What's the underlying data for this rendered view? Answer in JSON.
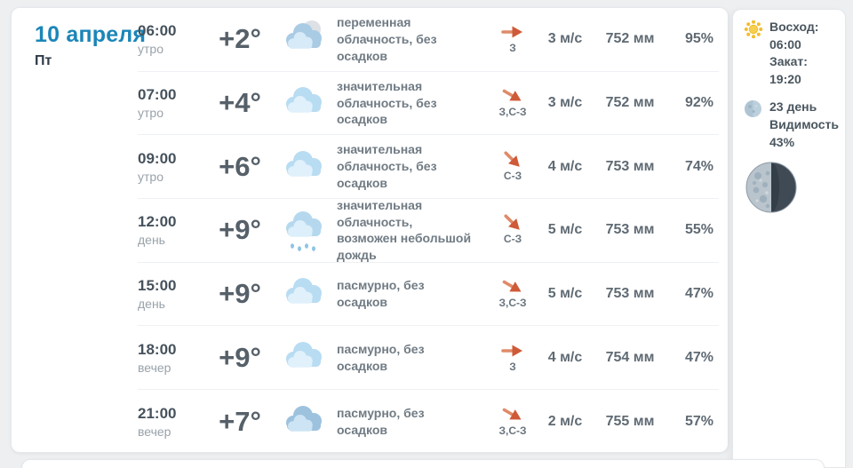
{
  "header": {
    "date": "10 апреля",
    "weekday": "Пт"
  },
  "rows": [
    {
      "time": "06:00",
      "period": "утро",
      "temp": "+2°",
      "icon": "cloud-moon",
      "desc": "переменная облачность, без осадков",
      "wind_dir": "З",
      "wind_deg": 0,
      "wind_speed": "3 м/с",
      "pressure": "752 мм",
      "humidity": "95%"
    },
    {
      "time": "07:00",
      "period": "утро",
      "temp": "+4°",
      "icon": "clouds",
      "desc": "значительная облачность, без осадков",
      "wind_dir": "З,С-З",
      "wind_deg": 30,
      "wind_speed": "3 м/с",
      "pressure": "752 мм",
      "humidity": "92%"
    },
    {
      "time": "09:00",
      "period": "утро",
      "temp": "+6°",
      "icon": "clouds",
      "desc": "значительная облачность, без осадков",
      "wind_dir": "С-З",
      "wind_deg": 45,
      "wind_speed": "4 м/с",
      "pressure": "753 мм",
      "humidity": "74%"
    },
    {
      "time": "12:00",
      "period": "день",
      "temp": "+9°",
      "icon": "clouds-rain",
      "desc": "значительная облачность, возможен небольшой дождь",
      "wind_dir": "С-З",
      "wind_deg": 45,
      "wind_speed": "5 м/с",
      "pressure": "753 мм",
      "humidity": "55%"
    },
    {
      "time": "15:00",
      "period": "день",
      "temp": "+9°",
      "icon": "clouds",
      "desc": "пасмурно, без осадков",
      "wind_dir": "З,С-З",
      "wind_deg": 30,
      "wind_speed": "5 м/с",
      "pressure": "753 мм",
      "humidity": "47%"
    },
    {
      "time": "18:00",
      "period": "вечер",
      "temp": "+9°",
      "icon": "clouds",
      "desc": "пасмурно, без осадков",
      "wind_dir": "З",
      "wind_deg": 0,
      "wind_speed": "4 м/с",
      "pressure": "754 мм",
      "humidity": "47%"
    },
    {
      "time": "21:00",
      "period": "вечер",
      "temp": "+7°",
      "icon": "clouds-dark",
      "desc": "пасмурно, без осадков",
      "wind_dir": "З,С-З",
      "wind_deg": 30,
      "wind_speed": "2 м/с",
      "pressure": "755 мм",
      "humidity": "57%"
    }
  ],
  "sidebar": {
    "sunrise": "Восход: 06:00",
    "sunset": "Закат: 19:20",
    "moon_day": "23 день",
    "visibility": "Видимость 43%",
    "moon_phase": "last-quarter"
  },
  "colors": {
    "accent_blue": "#1b86b8",
    "arrow_orange": "#d96a4a",
    "card_background": "#ffffff",
    "page_background": "#edeff1"
  }
}
